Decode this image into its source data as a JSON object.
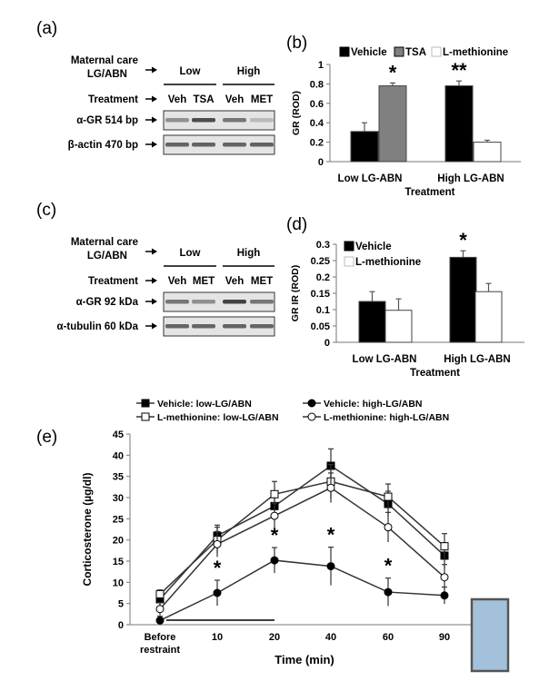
{
  "panels": {
    "a": {
      "label": "(a)",
      "row_labels": {
        "maternal_care": [
          "Maternal care",
          "LG/ABN"
        ],
        "treatment": "Treatment",
        "band1": "α-GR 514 bp",
        "band2": "β-actin 470 bp"
      },
      "groups": [
        "Low",
        "High"
      ],
      "lanes": [
        "Veh",
        "TSA",
        "Veh",
        "MET"
      ],
      "band1_intensity": [
        0.45,
        0.85,
        0.6,
        0.2
      ],
      "band2_intensity": [
        0.7,
        0.72,
        0.7,
        0.72
      ]
    },
    "c": {
      "label": "(c)",
      "row_labels": {
        "maternal_care": [
          "Maternal care",
          "LG/ABN"
        ],
        "treatment": "Treatment",
        "band1": "α-GR 92 kDa",
        "band2": "α-tubulin 60 kDa"
      },
      "groups": [
        "Low",
        "High"
      ],
      "lanes": [
        "Veh",
        "MET",
        "Veh",
        "MET"
      ],
      "band1_intensity": [
        0.6,
        0.45,
        0.9,
        0.6
      ],
      "band2_intensity": [
        0.7,
        0.7,
        0.72,
        0.7
      ]
    }
  },
  "chart_data": [
    {
      "panel": "(b)",
      "type": "bar",
      "legend": [
        "Vehicle",
        "TSA",
        "L-methionine"
      ],
      "legend_colors": [
        "#000000",
        "#808080",
        "#ffffff"
      ],
      "legend_placement": "top",
      "categories": [
        "Low LG-ABN",
        "High LG-ABN"
      ],
      "xlabel": "Treatment",
      "ylabel": "GR (ROD)",
      "ylim": [
        0,
        1
      ],
      "yticks": [
        "0",
        "0.2",
        "0.4",
        "0.6",
        "0.8",
        "1"
      ],
      "bars": [
        {
          "category": "Low LG-ABN",
          "series": "Vehicle",
          "value": 0.31,
          "error": 0.09
        },
        {
          "category": "Low LG-ABN",
          "series": "TSA",
          "value": 0.78,
          "error": 0.03,
          "annotation": "*"
        },
        {
          "category": "High LG-ABN",
          "series": "Vehicle",
          "value": 0.78,
          "error": 0.05,
          "annotation": "**"
        },
        {
          "category": "High LG-ABN",
          "series": "L-methionine",
          "value": 0.2,
          "error": 0.02
        }
      ]
    },
    {
      "panel": "(d)",
      "type": "bar",
      "legend": [
        "Vehicle",
        "L-methionine"
      ],
      "legend_colors": [
        "#000000",
        "#ffffff"
      ],
      "legend_placement": "top-left",
      "categories": [
        "Low LG-ABN",
        "High LG-ABN"
      ],
      "xlabel": "Treatment",
      "ylabel": "GR IR (ROD)",
      "ylim": [
        0,
        0.3
      ],
      "yticks": [
        "0",
        "0.05",
        "0.1",
        "0.15",
        "0.2",
        "0.25",
        "0.3"
      ],
      "bars": [
        {
          "category": "Low LG-ABN",
          "series": "Vehicle",
          "value": 0.125,
          "error": 0.03
        },
        {
          "category": "Low LG-ABN",
          "series": "L-methionine",
          "value": 0.098,
          "error": 0.035
        },
        {
          "category": "High LG-ABN",
          "series": "Vehicle",
          "value": 0.26,
          "error": 0.02,
          "annotation": "*"
        },
        {
          "category": "High LG-ABN",
          "series": "L-methionine",
          "value": 0.155,
          "error": 0.025
        }
      ]
    },
    {
      "panel": "(e)",
      "type": "line",
      "categories": [
        [
          "Before",
          "restraint"
        ],
        "10",
        "20",
        "40",
        "60",
        "90"
      ],
      "xlabel": "Time (min)",
      "ylabel": "Corticosterone (µg/dl)",
      "ylim": [
        0,
        45
      ],
      "yticks": [
        "0",
        "5",
        "10",
        "15",
        "20",
        "25",
        "30",
        "35",
        "40",
        "45"
      ],
      "legend_placement": "top",
      "series": [
        {
          "name": "Vehicle: low-LG/ABN",
          "marker": "square-filled",
          "values": [
            6,
            21,
            28,
            37.5,
            28.5,
            16.3
          ],
          "errors": [
            2,
            2.5,
            2.5,
            4,
            3,
            3
          ]
        },
        {
          "name": "Vehicle: high-LG/ABN",
          "marker": "circle-filled",
          "values": [
            1,
            7.5,
            15.2,
            13.8,
            7.7,
            6.9
          ],
          "errors": [
            1,
            3,
            3,
            4.5,
            3.3,
            2
          ]
        },
        {
          "name": "L-methionine: low-LG/ABN",
          "marker": "square-open",
          "values": [
            7.2,
            20,
            30.8,
            33.8,
            30.2,
            18.5
          ],
          "errors": [
            1,
            3,
            3,
            4,
            3,
            3
          ]
        },
        {
          "name": "L-methionine: high-LG/ABN",
          "marker": "circle-open",
          "values": [
            3.7,
            19,
            25.7,
            32.3,
            23,
            11.2
          ],
          "errors": [
            1.5,
            3,
            3,
            3.5,
            3.5,
            3
          ]
        }
      ],
      "significance": [
        {
          "category": "10",
          "annotation": "*"
        },
        {
          "category": "20",
          "annotation": "*"
        },
        {
          "category": "40",
          "annotation": "*"
        },
        {
          "category": "60",
          "annotation": "*"
        }
      ],
      "restraint_bar": [
        "Before restraint",
        "20"
      ],
      "overlay_box_color": "#a3c1da"
    }
  ]
}
